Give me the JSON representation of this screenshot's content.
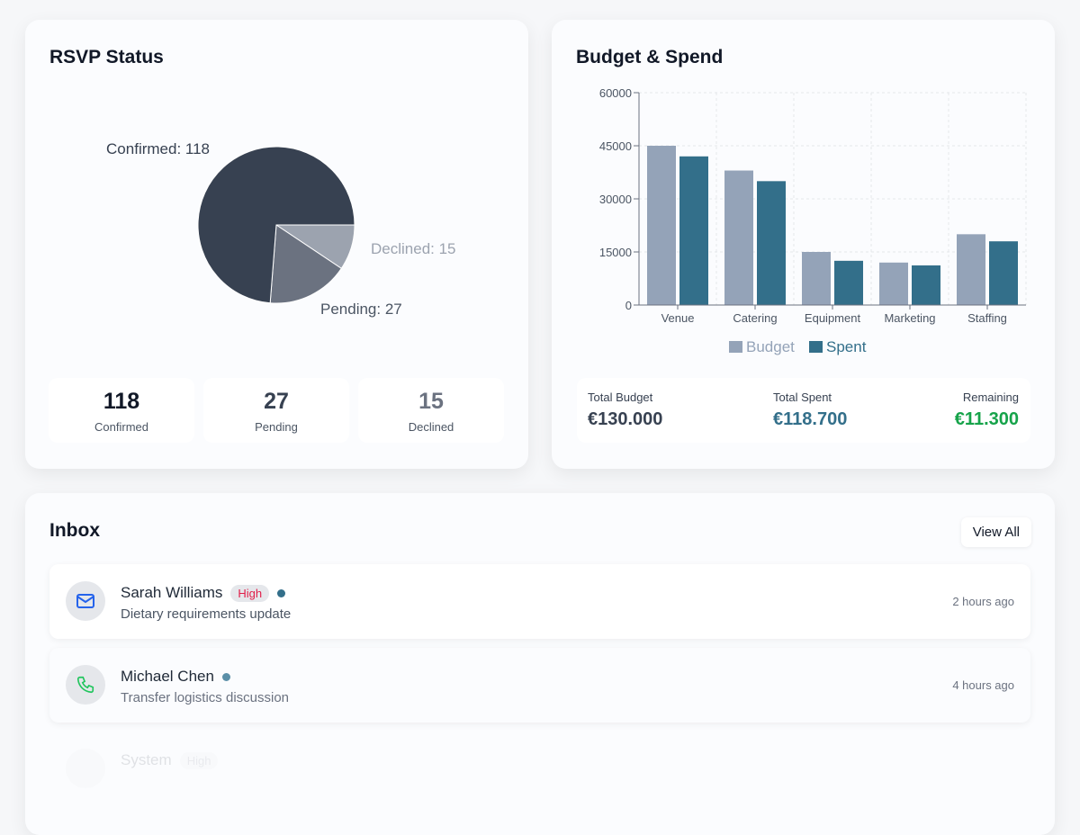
{
  "rsvp": {
    "title": "RSVP Status",
    "stats": [
      {
        "value": "118",
        "label": "Confirmed"
      },
      {
        "value": "27",
        "label": "Pending"
      },
      {
        "value": "15",
        "label": "Declined"
      }
    ]
  },
  "budget": {
    "title": "Budget & Spend",
    "totals": [
      {
        "label": "Total Budget",
        "value": "€130.000"
      },
      {
        "label": "Total Spent",
        "value": "€118.700"
      },
      {
        "label": "Remaining",
        "value": "€11.300"
      }
    ]
  },
  "inbox": {
    "title": "Inbox",
    "view_all": "View All",
    "items": [
      {
        "name": "Sarah Williams",
        "badge": "High",
        "subject": "Dietary requirements update",
        "time": "2 hours ago",
        "icon": "mail-icon",
        "unread": true
      },
      {
        "name": "Michael Chen",
        "subject": "Transfer logistics discussion",
        "time": "4 hours ago",
        "icon": "phone-icon",
        "unread": true
      },
      {
        "name": "System",
        "badge": "High"
      }
    ]
  },
  "chart_data": [
    {
      "type": "pie",
      "slices": [
        {
          "label": "Declined",
          "value": 15,
          "color": "#9ca3af"
        },
        {
          "label": "Pending",
          "value": 27,
          "color": "#6b7280"
        },
        {
          "label": "Confirmed",
          "value": 118,
          "color": "#374151"
        }
      ],
      "labels": [
        "Declined: 15",
        "Pending: 27",
        "Confirmed: 118"
      ]
    },
    {
      "type": "bar",
      "categories": [
        "Venue",
        "Catering",
        "Equipment",
        "Marketing",
        "Staffing"
      ],
      "series": [
        {
          "name": "Budget",
          "values": [
            45000,
            38000,
            15000,
            12000,
            20000
          ],
          "color": "#94a3b8"
        },
        {
          "name": "Spent",
          "values": [
            42000,
            35000,
            12500,
            11200,
            18000
          ],
          "color": "#336f8a"
        }
      ],
      "ylim": [
        0,
        60000
      ],
      "yticks": [
        "0",
        "15000",
        "30000",
        "45000",
        "60000"
      ],
      "grid": true,
      "legend": "bottom"
    }
  ],
  "colors": {
    "spent": "#336f8a",
    "remaining": "#16a34a"
  }
}
